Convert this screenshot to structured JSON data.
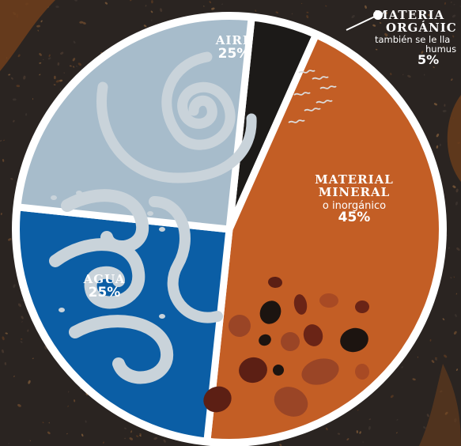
{
  "chart_data": {
    "type": "pie",
    "slices": [
      {
        "label": "AIRE",
        "percent_label": "25%",
        "value": 25,
        "color": "#a7bccb"
      },
      {
        "label": "MATERIA ORGÁNICA",
        "percent_label": "5%",
        "value": 5,
        "color": "#1c1a18",
        "note": "también se le llama humus"
      },
      {
        "label": "MATERIAL MINERAL",
        "percent_label": "45%",
        "value": 45,
        "color": "#c35e25",
        "note": "o inorgánico"
      },
      {
        "label": "AGUA",
        "percent_label": "25%",
        "value": 25,
        "color": "#0b5ea5"
      }
    ]
  },
  "labels": {
    "aire_name": "AIRE",
    "aire_pct": "25%",
    "agua_name": "AGUA",
    "agua_pct": "25%",
    "mineral_name_1": "MATERIAL",
    "mineral_name_2": "MINERAL",
    "mineral_sub": "o inorgánico",
    "mineral_pct": "45%",
    "org_name_1": "MATERIA",
    "org_name_2": "ORGÁNIC",
    "org_sub_1": "también se le lla",
    "org_sub_2": "humus",
    "org_pct": "5%"
  },
  "colors": {
    "background": "#2a2421",
    "wedge_border": "#ffffff",
    "org_label": "#ffffff"
  }
}
